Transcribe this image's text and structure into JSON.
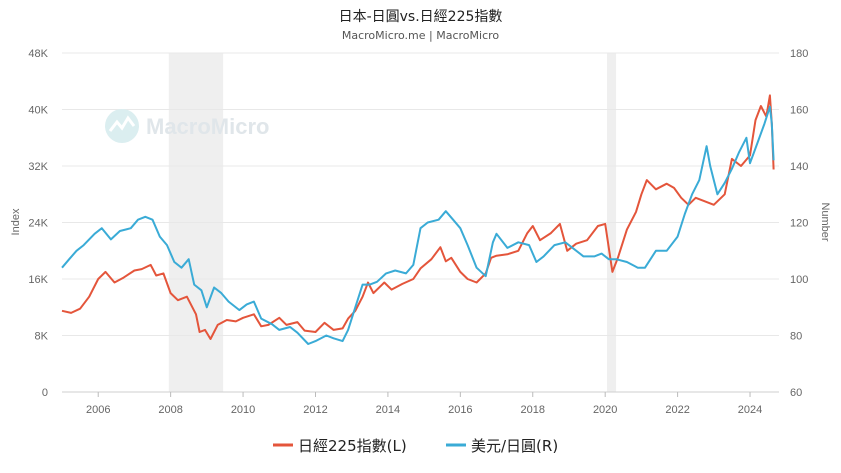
{
  "title": "日本-日圓vs.日經225指數",
  "subtitle": "MacroMicro.me | MacroMicro",
  "watermark": "MacroMicro",
  "chart_data": {
    "type": "line",
    "title": "日本-日圓vs.日經225指數",
    "subtitle": "MacroMicro.me | MacroMicro",
    "left_axis": {
      "label": "Index",
      "range": [
        0,
        48000
      ],
      "ticks": [
        0,
        8000,
        16000,
        24000,
        32000,
        40000,
        48000
      ],
      "tick_labels": [
        "0",
        "8K",
        "16K",
        "24K",
        "32K",
        "40K",
        "48K"
      ]
    },
    "right_axis": {
      "label": "Number",
      "range": [
        60,
        180
      ],
      "ticks": [
        60,
        80,
        100,
        120,
        140,
        160,
        180
      ],
      "tick_labels": [
        "60",
        "80",
        "100",
        "120",
        "140",
        "160",
        "180"
      ]
    },
    "x_axis": {
      "range": [
        2005.0,
        2024.8
      ],
      "ticks": [
        2006,
        2008,
        2010,
        2012,
        2014,
        2016,
        2018,
        2020,
        2022,
        2024
      ],
      "tick_labels": [
        "2006",
        "2008",
        "2010",
        "2012",
        "2014",
        "2016",
        "2018",
        "2020",
        "2022",
        "2024"
      ]
    },
    "shaded_periods": [
      [
        2007.95,
        2009.45
      ],
      [
        2020.05,
        2020.3
      ]
    ],
    "grid": "horizontal",
    "legend_position": "bottom",
    "series": [
      {
        "name": "日經225指數(L)",
        "axis": "left",
        "color": "#e4553b",
        "x": [
          2005.0,
          2005.25,
          2005.5,
          2005.75,
          2006.0,
          2006.2,
          2006.45,
          2006.7,
          2007.0,
          2007.2,
          2007.45,
          2007.6,
          2007.8,
          2008.0,
          2008.2,
          2008.45,
          2008.7,
          2008.8,
          2008.95,
          2009.1,
          2009.3,
          2009.55,
          2009.8,
          2010.0,
          2010.3,
          2010.5,
          2010.7,
          2011.0,
          2011.2,
          2011.5,
          2011.7,
          2012.0,
          2012.25,
          2012.5,
          2012.75,
          2012.9,
          2013.1,
          2013.3,
          2013.45,
          2013.6,
          2013.9,
          2014.1,
          2014.4,
          2014.7,
          2014.9,
          2015.2,
          2015.45,
          2015.6,
          2015.75,
          2016.0,
          2016.2,
          2016.45,
          2016.7,
          2016.85,
          2017.0,
          2017.3,
          2017.6,
          2017.85,
          2018.0,
          2018.2,
          2018.5,
          2018.75,
          2018.95,
          2019.2,
          2019.5,
          2019.8,
          2020.0,
          2020.2,
          2020.35,
          2020.6,
          2020.85,
          2021.0,
          2021.15,
          2021.4,
          2021.7,
          2021.9,
          2022.1,
          2022.3,
          2022.5,
          2022.75,
          2023.0,
          2023.3,
          2023.5,
          2023.75,
          2024.0,
          2024.15,
          2024.3,
          2024.45,
          2024.55,
          2024.6,
          2024.65
        ],
        "values": [
          11500,
          11200,
          11800,
          13500,
          16000,
          17000,
          15500,
          16200,
          17200,
          17400,
          18000,
          16500,
          16800,
          14000,
          13000,
          13500,
          11000,
          8500,
          8800,
          7500,
          9500,
          10200,
          10000,
          10500,
          11000,
          9300,
          9500,
          10500,
          9500,
          9900,
          8700,
          8500,
          9800,
          8800,
          9000,
          10400,
          11500,
          13500,
          15500,
          14000,
          15500,
          14500,
          15300,
          16000,
          17500,
          18800,
          20500,
          18500,
          19000,
          17000,
          16000,
          15500,
          16800,
          19000,
          19300,
          19500,
          20000,
          22500,
          23500,
          21500,
          22500,
          23800,
          20000,
          21000,
          21500,
          23500,
          23800,
          17000,
          19000,
          23000,
          25500,
          28000,
          30000,
          28700,
          29500,
          28900,
          27500,
          26500,
          27500,
          27000,
          26500,
          28000,
          33000,
          32000,
          33500,
          38500,
          40500,
          39000,
          42000,
          38000,
          31500
        ]
      },
      {
        "name": "美元/日圓(R)",
        "axis": "right",
        "color": "#3aabd6",
        "x": [
          2005.0,
          2005.2,
          2005.4,
          2005.6,
          2005.9,
          2006.1,
          2006.35,
          2006.6,
          2006.9,
          2007.1,
          2007.3,
          2007.5,
          2007.7,
          2007.9,
          2008.1,
          2008.3,
          2008.5,
          2008.65,
          2008.85,
          2009.0,
          2009.2,
          2009.4,
          2009.6,
          2009.9,
          2010.1,
          2010.3,
          2010.5,
          2010.8,
          2011.0,
          2011.3,
          2011.5,
          2011.8,
          2012.0,
          2012.3,
          2012.5,
          2012.75,
          2012.9,
          2013.1,
          2013.3,
          2013.5,
          2013.7,
          2013.95,
          2014.2,
          2014.5,
          2014.7,
          2014.9,
          2015.1,
          2015.4,
          2015.6,
          2015.8,
          2016.0,
          2016.2,
          2016.45,
          2016.7,
          2016.9,
          2017.0,
          2017.3,
          2017.6,
          2017.9,
          2018.1,
          2018.3,
          2018.6,
          2018.9,
          2019.1,
          2019.4,
          2019.7,
          2019.9,
          2020.1,
          2020.3,
          2020.6,
          2020.9,
          2021.1,
          2021.4,
          2021.7,
          2022.0,
          2022.2,
          2022.4,
          2022.6,
          2022.8,
          2022.9,
          2023.1,
          2023.3,
          2023.5,
          2023.7,
          2023.9,
          2024.0,
          2024.2,
          2024.4,
          2024.55,
          2024.6,
          2024.65
        ],
        "values": [
          104,
          107,
          110,
          112,
          116,
          118,
          114,
          117,
          118,
          121,
          122,
          121,
          115,
          112,
          106,
          104,
          107,
          98,
          96,
          90,
          97,
          95,
          92,
          89,
          91,
          92,
          86,
          84,
          82,
          83,
          81,
          77,
          78,
          80,
          79,
          78,
          82,
          90,
          98,
          98,
          99,
          102,
          103,
          102,
          105,
          118,
          120,
          121,
          124,
          121,
          118,
          112,
          104,
          101,
          113,
          116,
          111,
          113,
          112,
          106,
          108,
          112,
          113,
          111,
          108,
          108,
          109,
          107,
          107,
          106,
          104,
          104,
          110,
          110,
          115,
          123,
          130,
          135,
          147,
          140,
          130,
          134,
          139,
          145,
          150,
          141,
          148,
          155,
          161,
          155,
          142
        ]
      }
    ]
  }
}
